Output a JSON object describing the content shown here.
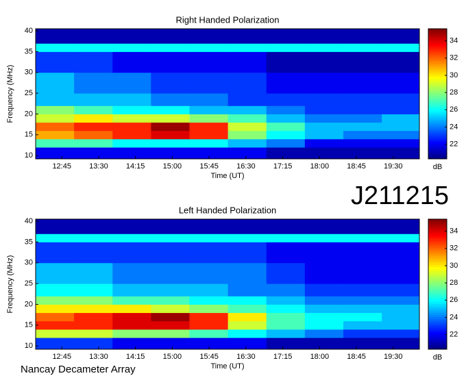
{
  "chart_data": [
    {
      "type": "heatmap",
      "title": "Right Handed Polarization",
      "xlabel": "Time (UT)",
      "ylabel": "Frequency (MHz)",
      "x_edges": [
        733,
        780,
        827,
        874,
        921,
        968,
        1015,
        1062,
        1109,
        1156,
        1202
      ],
      "y_edges": [
        9.2,
        12,
        14,
        16,
        18,
        20,
        22,
        25,
        30,
        35,
        37,
        40.5
      ],
      "z": [
        [
          22,
          22,
          22,
          22,
          22,
          22,
          21,
          21,
          21,
          21
        ],
        [
          27,
          27,
          26,
          26,
          26,
          25,
          24,
          22,
          22,
          22
        ],
        [
          31,
          32,
          33,
          34,
          33,
          28,
          26,
          25,
          24,
          24
        ],
        [
          32,
          33,
          33,
          35,
          33,
          29,
          27,
          25,
          25,
          25
        ],
        [
          29,
          30,
          29,
          29,
          28,
          27,
          25,
          24,
          24,
          25
        ],
        [
          28,
          27,
          26,
          26,
          25,
          25,
          24,
          23,
          23,
          23
        ],
        [
          25,
          25,
          25,
          24,
          24,
          23,
          23,
          23,
          23,
          23
        ],
        [
          25,
          24,
          24,
          23,
          23,
          23,
          22,
          22,
          22,
          22
        ],
        [
          23,
          23,
          22,
          22,
          22,
          22,
          21,
          21,
          21,
          21
        ],
        [
          26,
          26,
          26,
          26,
          26,
          26,
          26,
          26,
          26,
          26
        ],
        [
          21,
          21,
          21,
          21,
          21,
          21,
          21,
          21,
          21,
          21
        ]
      ],
      "xlim": [
        733,
        1202
      ],
      "ylim": [
        9.2,
        40.5
      ],
      "xticks": [
        {
          "value": 765,
          "label": "12:45"
        },
        {
          "value": 810,
          "label": "13:30"
        },
        {
          "value": 855,
          "label": "14:15"
        },
        {
          "value": 900,
          "label": "15:00"
        },
        {
          "value": 945,
          "label": "15:45"
        },
        {
          "value": 990,
          "label": "16:30"
        },
        {
          "value": 1035,
          "label": "17:15"
        },
        {
          "value": 1080,
          "label": "18:00"
        },
        {
          "value": 1125,
          "label": "18:45"
        },
        {
          "value": 1170,
          "label": "19:30"
        }
      ],
      "yticks": [
        10,
        15,
        20,
        25,
        30,
        35,
        40
      ],
      "colormap": "jet",
      "colorbar": {
        "label": "dB",
        "lim": [
          20.3,
          35.4
        ],
        "ticks": [
          22,
          24,
          26,
          28,
          30,
          32,
          34
        ]
      }
    },
    {
      "type": "heatmap",
      "title": "Left Handed Polarization",
      "xlabel": "Time (UT)",
      "ylabel": "Frequency (MHz)",
      "x_edges": [
        733,
        780,
        827,
        874,
        921,
        968,
        1015,
        1062,
        1109,
        1156,
        1202
      ],
      "y_edges": [
        9.2,
        12,
        14,
        16,
        18,
        20,
        22,
        25,
        30,
        35,
        37,
        40.5
      ],
      "z": [
        [
          23,
          23,
          22,
          22,
          22,
          22,
          21,
          21,
          21,
          21
        ],
        [
          29,
          29,
          28,
          28,
          27,
          26,
          25,
          24,
          23,
          23
        ],
        [
          33,
          33,
          34,
          34,
          33,
          29,
          27,
          26,
          25,
          25
        ],
        [
          32,
          33,
          34,
          35,
          33,
          30,
          27,
          26,
          26,
          25
        ],
        [
          30,
          30,
          30,
          29,
          28,
          27,
          26,
          25,
          25,
          25
        ],
        [
          28,
          28,
          27,
          27,
          26,
          26,
          25,
          24,
          24,
          24
        ],
        [
          26,
          26,
          25,
          25,
          25,
          24,
          24,
          23,
          23,
          23
        ],
        [
          25,
          25,
          24,
          24,
          24,
          24,
          23,
          22,
          22,
          22
        ],
        [
          23,
          23,
          23,
          23,
          23,
          23,
          22,
          22,
          22,
          22
        ],
        [
          26,
          26,
          26,
          26,
          26,
          26,
          26,
          26,
          26,
          26
        ],
        [
          21,
          21,
          21,
          21,
          21,
          21,
          21,
          21,
          21,
          21
        ]
      ],
      "xlim": [
        733,
        1202
      ],
      "ylim": [
        9.2,
        40.5
      ],
      "xticks": [
        {
          "value": 765,
          "label": "12:45"
        },
        {
          "value": 810,
          "label": "13:30"
        },
        {
          "value": 855,
          "label": "14:15"
        },
        {
          "value": 900,
          "label": "15:00"
        },
        {
          "value": 945,
          "label": "15:45"
        },
        {
          "value": 990,
          "label": "16:30"
        },
        {
          "value": 1035,
          "label": "17:15"
        },
        {
          "value": 1080,
          "label": "18:00"
        },
        {
          "value": 1125,
          "label": "18:45"
        },
        {
          "value": 1170,
          "label": "19:30"
        }
      ],
      "yticks": [
        10,
        15,
        20,
        25,
        30,
        35,
        40
      ],
      "colormap": "jet",
      "colorbar": {
        "label": "dB",
        "lim": [
          20.3,
          35.4
        ],
        "ticks": [
          22,
          24,
          26,
          28,
          30,
          32,
          34
        ]
      }
    }
  ],
  "observation_id": "J211215",
  "instrument": "Nancay Decameter Array"
}
